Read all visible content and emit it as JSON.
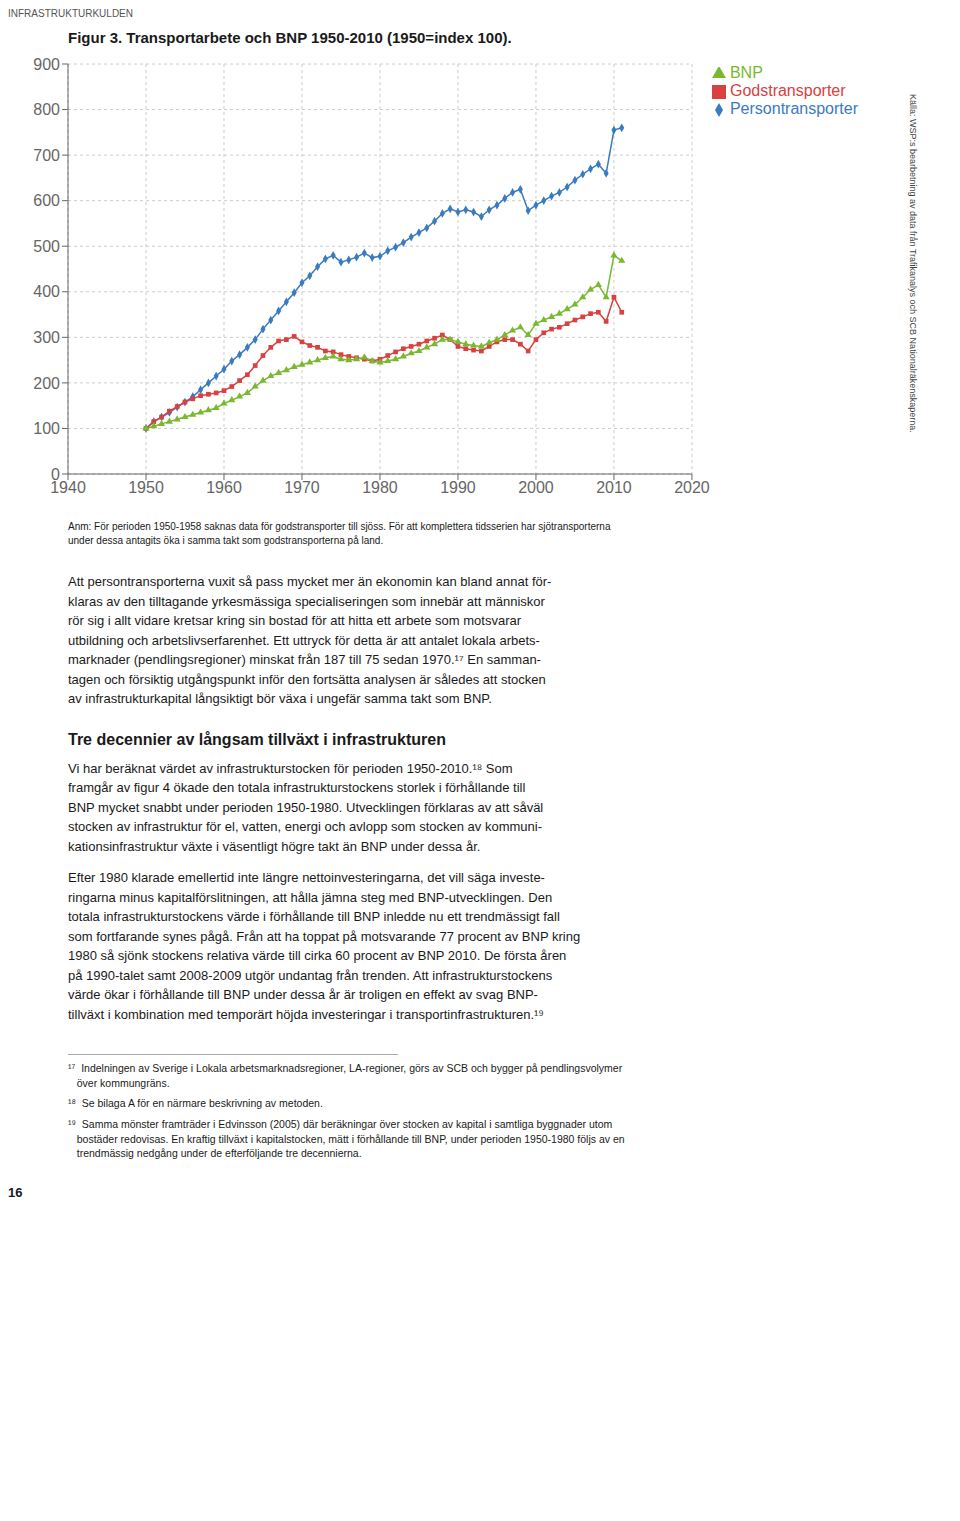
{
  "chart_data": {
    "type": "line",
    "title": "Figur 3. Transportarbete och BNP 1950-2010 (1950=index 100).",
    "x": [
      1950,
      1951,
      1952,
      1953,
      1954,
      1955,
      1956,
      1957,
      1958,
      1959,
      1960,
      1961,
      1962,
      1963,
      1964,
      1965,
      1966,
      1967,
      1968,
      1969,
      1970,
      1971,
      1972,
      1973,
      1974,
      1975,
      1976,
      1977,
      1978,
      1979,
      1980,
      1981,
      1982,
      1983,
      1984,
      1985,
      1986,
      1987,
      1988,
      1989,
      1990,
      1991,
      1992,
      1993,
      1994,
      1995,
      1996,
      1997,
      1998,
      1999,
      2000,
      2001,
      2002,
      2003,
      2004,
      2005,
      2006,
      2007,
      2008,
      2009,
      2010,
      2011
    ],
    "series": [
      {
        "name": "Persontransporter",
        "color": "#3a7abf",
        "marker": "diamond",
        "values": [
          100,
          115,
          125,
          135,
          147,
          158,
          170,
          185,
          200,
          215,
          230,
          248,
          262,
          278,
          295,
          318,
          338,
          358,
          378,
          398,
          420,
          435,
          455,
          472,
          480,
          465,
          470,
          476,
          485,
          475,
          478,
          490,
          498,
          508,
          520,
          530,
          540,
          555,
          572,
          582,
          575,
          580,
          575,
          565,
          580,
          590,
          605,
          618,
          625,
          578,
          590,
          600,
          610,
          618,
          630,
          645,
          658,
          670,
          680,
          660,
          755,
          760
        ]
      },
      {
        "name": "Godstransporter",
        "color": "#d94040",
        "marker": "square",
        "values": [
          100,
          115,
          125,
          138,
          148,
          158,
          165,
          172,
          175,
          178,
          183,
          192,
          205,
          218,
          238,
          260,
          278,
          292,
          295,
          302,
          290,
          282,
          278,
          270,
          268,
          262,
          258,
          255,
          252,
          248,
          252,
          260,
          268,
          275,
          280,
          285,
          292,
          298,
          305,
          295,
          280,
          275,
          272,
          270,
          280,
          290,
          295,
          295,
          285,
          270,
          295,
          310,
          318,
          322,
          330,
          338,
          345,
          352,
          355,
          335,
          388,
          355
        ]
      },
      {
        "name": "BNP",
        "color": "#7ab830",
        "marker": "triangle",
        "values": [
          100,
          105,
          110,
          115,
          120,
          125,
          130,
          135,
          140,
          145,
          155,
          162,
          170,
          178,
          192,
          205,
          215,
          222,
          228,
          235,
          240,
          245,
          250,
          255,
          258,
          252,
          250,
          252,
          256,
          248,
          245,
          248,
          252,
          258,
          265,
          270,
          278,
          285,
          295,
          295,
          290,
          285,
          282,
          280,
          288,
          295,
          305,
          315,
          322,
          305,
          330,
          338,
          345,
          352,
          362,
          372,
          388,
          405,
          415,
          388,
          480,
          468
        ]
      }
    ],
    "xlim": [
      1940,
      2020
    ],
    "ylim": [
      0,
      900
    ],
    "xticks": [
      1940,
      1950,
      1960,
      1970,
      1980,
      1990,
      2000,
      2010,
      2020
    ],
    "yticks": [
      0,
      100,
      200,
      300,
      400,
      500,
      600,
      700,
      800,
      900
    ],
    "grid": true,
    "legend": "right",
    "annotations": [
      "INFRASTRUKTURKULDEN",
      "Anm: För perioden 1950-1958 saknas data för godstransporter till sjöss. För att komplettera tidsserien har sjötransporterna\nunder dessa antagits öka i samma takt som godstransporterna på land.",
      "Källa: WSP:s bearbetning av data från Trafikanalys och SCB Nationalräkenskaperna.",
      "Att persontransporterna vuxit så pass mycket mer än ekonomin kan bland annat för-\nklaras av den tilltagande yrkesmässiga specialiseringen som innebär att människor\nrör sig i allt vidare kretsar kring sin bostad för att hitta ett arbete som motsvarar\nutbildning och arbetslivserfarenhet. Ett uttryck för detta är att antalet lokala arbets-\nmarknader (pendlingsregioner) minskat från 187 till 75 sedan 1970.¹⁷ En samman-\ntagen och försiktig utgångspunkt inför den fortsätta analysen är således att stocken\nav infrastrukturkapital långsiktigt bör växa i ungefär samma takt som BNP.",
      "Tre decennier av långsam tillväxt i infrastrukturen",
      "Vi har beräknat värdet av infrastrukturstocken för perioden 1950-2010.¹⁸ Som\nframgår av figur 4 ökade den totala infrastrukturstockens storlek i förhållande till\nBNP mycket snabbt under perioden 1950-1980. Utvecklingen förklaras av att såväl\nstocken av infrastruktur för el, vatten, energi och avlopp som stocken av kommuni-\nkationsinfrastruktur växte i väsentligt högre takt än BNP under dessa år.",
      "Efter 1980 klarade emellertid inte längre nettoinvesteringarna, det vill säga investe-\nringarna minus kapitalförslitningen, att hålla jämna steg med BNP-utvecklingen. Den\ntotala infrastrukturstockens värde i förhållande till BNP inledde nu ett trendmässigt fall\nsom fortfarande synes pågå. Från att ha toppat på motsvarande 77 procent av BNP kring\n1980 så sjönk stockens relativa värde till cirka 60 procent av BNP 2010. De första åren\npå 1990-talet samt 2008-2009 utgör undantag från trenden. Att infrastrukturstockens\nvärde ökar i förhållande till BNP under dessa år är troligen en effekt av svag BNP-\ntillväxt i kombination med temporärt höjda investeringar i transportinfrastrukturen.¹⁹",
      "¹⁷  Indelningen av Sverige i Lokala arbetsmarknadsregioner, LA-regioner, görs av SCB och bygger på pendlingsvolymer\n   över kommungräns.",
      "¹⁸  Se bilaga A för en närmare beskrivning av metoden.",
      "¹⁹  Samma mönster framträder i Edvinsson (2005) där beräkningar över stocken av kapital i samtliga byggnader utom\n   bostäder redovisas. En kraftig tillväxt i kapitalstocken, mätt i förhållande till BNP, under perioden 1950-1980 följs av en\n   trendmässig nedgång under de efterföljande tre decennierna.",
      "16"
    ]
  }
}
